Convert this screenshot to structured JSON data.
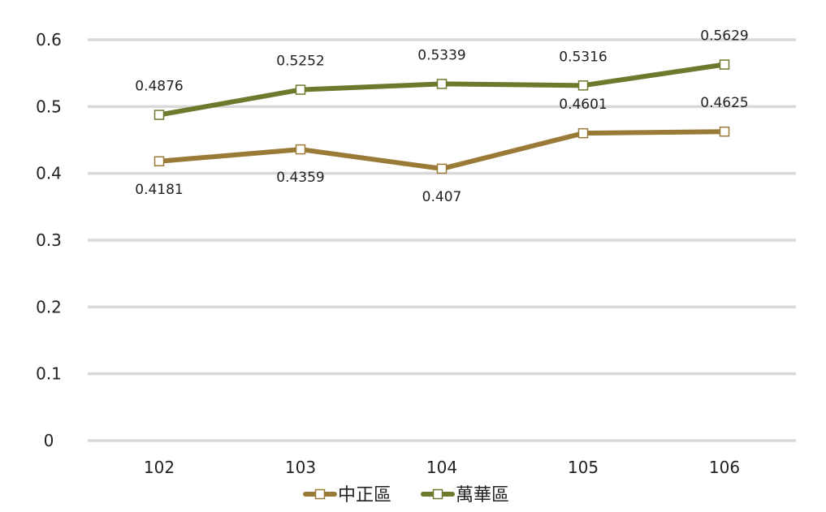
{
  "chart_data": {
    "type": "line",
    "categories": [
      "102",
      "103",
      "104",
      "105",
      "106"
    ],
    "ylim": [
      0,
      0.6
    ],
    "yticks": [
      "0",
      "0.1",
      "0.2",
      "0.3",
      "0.4",
      "0.5",
      "0.6"
    ],
    "grid": true,
    "legend_position": "bottom",
    "series": [
      {
        "name": "中正區",
        "color": "#9a7a37",
        "values": [
          0.4181,
          0.4359,
          0.407,
          0.4601,
          0.4625
        ],
        "labels": [
          "0.4181",
          "0.4359",
          "0.407",
          "0.4601",
          "0.4625"
        ]
      },
      {
        "name": "萬華區",
        "color": "#6b7a2c",
        "values": [
          0.4876,
          0.5252,
          0.5339,
          0.5316,
          0.5629
        ],
        "labels": [
          "0.4876",
          "0.5252",
          "0.5339",
          "0.5316",
          "0.5629"
        ]
      }
    ]
  }
}
